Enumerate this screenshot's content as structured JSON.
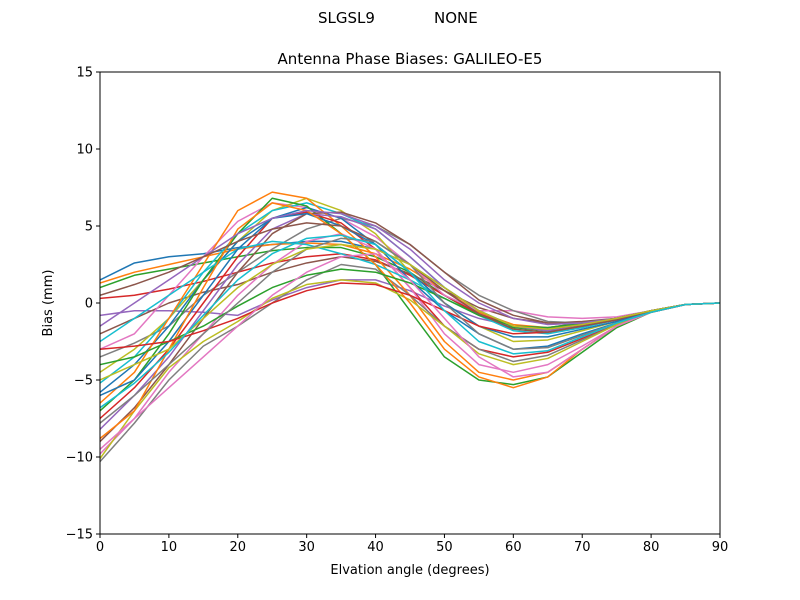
{
  "figure": {
    "suptitle_left": "SLGSL9",
    "suptitle_right": "NONE"
  },
  "chart_data": {
    "type": "line",
    "title": "Antenna Phase Biases: GALILEO-E5",
    "xlabel": "Elvation angle (degrees)",
    "ylabel": "Bias (mm)",
    "xlim": [
      0,
      90
    ],
    "ylim": [
      -15,
      15
    ],
    "xticks": [
      0,
      10,
      20,
      30,
      40,
      50,
      60,
      70,
      80,
      90
    ],
    "yticks": [
      -15,
      -10,
      -5,
      0,
      5,
      10,
      15
    ],
    "grid": false,
    "legend": "none",
    "x": [
      0,
      5,
      10,
      15,
      20,
      25,
      30,
      35,
      40,
      45,
      50,
      55,
      60,
      65,
      70,
      75,
      80,
      85,
      90
    ],
    "series": [
      {
        "values": [
          1.5,
          2.6,
          3.0,
          3.2,
          3.6,
          3.8,
          4.0,
          4.0,
          3.5,
          2.5,
          1.0,
          -0.5,
          -1.5,
          -1.7,
          -1.3,
          -1.0,
          -0.5,
          -0.1,
          0.0
        ]
      },
      {
        "values": [
          1.3,
          2.0,
          2.5,
          3.0,
          3.5,
          3.8,
          3.9,
          3.8,
          3.2,
          2.2,
          0.8,
          -0.6,
          -1.4,
          -1.6,
          -1.3,
          -1.0,
          -0.5,
          -0.1,
          0.0
        ]
      },
      {
        "values": [
          1.0,
          1.8,
          2.2,
          2.6,
          3.0,
          3.4,
          3.6,
          3.6,
          3.0,
          2.0,
          0.5,
          -0.8,
          -1.6,
          -1.8,
          -1.4,
          -1.0,
          -0.5,
          -0.1,
          0.0
        ]
      },
      {
        "values": [
          0.3,
          0.5,
          0.9,
          1.4,
          2.0,
          2.6,
          3.0,
          3.2,
          2.8,
          1.8,
          0.5,
          -0.7,
          -1.5,
          -1.8,
          -1.4,
          -1.0,
          -0.5,
          -0.1,
          0.0
        ]
      },
      {
        "values": [
          -0.8,
          -0.5,
          -0.5,
          -0.6,
          -0.8,
          0.2,
          1.0,
          1.5,
          1.5,
          0.8,
          -0.2,
          -1.0,
          -1.5,
          -1.6,
          -1.3,
          -1.0,
          -0.5,
          -0.1,
          0.0
        ]
      },
      {
        "values": [
          -2.0,
          -1.0,
          0.0,
          0.7,
          1.2,
          2.0,
          2.6,
          3.0,
          2.7,
          1.9,
          0.8,
          -0.3,
          -1.0,
          -1.3,
          -1.2,
          -1.0,
          -0.5,
          -0.1,
          0.0
        ]
      },
      {
        "values": [
          -3.0,
          -2.0,
          0.5,
          3.0,
          5.3,
          6.5,
          6.2,
          5.5,
          4.3,
          2.5,
          0.5,
          -0.5,
          -0.5,
          -0.9,
          -1.0,
          -0.9,
          -0.5,
          -0.1,
          0.0
        ]
      },
      {
        "values": [
          -3.5,
          -2.6,
          -1.5,
          0.5,
          2.0,
          3.5,
          4.8,
          5.5,
          5.0,
          3.8,
          2.0,
          0.5,
          -0.5,
          -1.2,
          -1.3,
          -1.0,
          -0.5,
          -0.1,
          0.0
        ]
      },
      {
        "values": [
          -4.5,
          -3.0,
          -1.0,
          1.5,
          4.0,
          6.0,
          6.8,
          6.0,
          4.5,
          2.0,
          0.0,
          -1.5,
          -2.5,
          -2.4,
          -1.8,
          -1.2,
          -0.6,
          -0.1,
          0.0
        ]
      },
      {
        "values": [
          -5.2,
          -3.5,
          -1.0,
          2.0,
          4.5,
          6.0,
          6.5,
          5.8,
          4.8,
          3.0,
          1.0,
          -0.5,
          -1.5,
          -1.8,
          -1.5,
          -1.1,
          -0.5,
          -0.1,
          0.0
        ]
      },
      {
        "values": [
          -5.8,
          -4.0,
          -1.5,
          1.5,
          4.0,
          5.5,
          6.2,
          5.5,
          3.8,
          1.5,
          -0.5,
          -2.0,
          -3.0,
          -2.8,
          -2.0,
          -1.3,
          -0.6,
          -0.1,
          0.0
        ]
      },
      {
        "values": [
          -6.5,
          -4.5,
          -1.0,
          2.5,
          6.0,
          7.2,
          6.8,
          5.0,
          3.0,
          0.5,
          -2.5,
          -4.5,
          -5.0,
          -4.5,
          -3.0,
          -1.5,
          -0.6,
          -0.1,
          0.0
        ]
      },
      {
        "values": [
          -7.0,
          -5.0,
          -2.0,
          1.5,
          4.5,
          6.8,
          6.3,
          4.5,
          2.5,
          -0.5,
          -3.5,
          -5.0,
          -5.3,
          -4.8,
          -3.2,
          -1.6,
          -0.6,
          -0.1,
          0.0
        ]
      },
      {
        "values": [
          -7.5,
          -5.5,
          -3.0,
          0.0,
          3.0,
          5.5,
          5.9,
          5.2,
          3.5,
          1.0,
          -1.5,
          -3.0,
          -3.5,
          -3.2,
          -2.3,
          -1.4,
          -0.6,
          -0.1,
          0.0
        ]
      },
      {
        "values": [
          -8.2,
          -6.0,
          -3.5,
          -0.5,
          2.5,
          4.8,
          5.8,
          5.6,
          4.8,
          3.0,
          1.0,
          -0.5,
          -1.5,
          -1.8,
          -1.5,
          -1.1,
          -0.5,
          -0.1,
          0.0
        ]
      },
      {
        "values": [
          -9.0,
          -6.8,
          -4.0,
          -1.0,
          2.0,
          4.5,
          5.8,
          5.9,
          5.2,
          3.8,
          2.0,
          0.2,
          -0.8,
          -1.3,
          -1.3,
          -1.0,
          -0.5,
          -0.1,
          0.0
        ]
      },
      {
        "values": [
          -9.8,
          -7.5,
          -4.5,
          -2.0,
          0.5,
          2.5,
          4.0,
          4.5,
          3.5,
          1.0,
          -2.0,
          -4.0,
          -4.5,
          -4.0,
          -2.8,
          -1.5,
          -0.6,
          -0.1,
          0.0
        ]
      },
      {
        "values": [
          -10.3,
          -7.8,
          -5.0,
          -2.8,
          -1.5,
          0.0,
          1.5,
          2.5,
          2.2,
          0.5,
          -1.5,
          -3.0,
          -3.8,
          -3.4,
          -2.4,
          -1.4,
          -0.6,
          -0.1,
          0.0
        ]
      },
      {
        "values": [
          -10.1,
          -7.0,
          -4.2,
          -2.5,
          -1.2,
          0.3,
          1.2,
          1.5,
          1.3,
          0.2,
          -1.5,
          -3.3,
          -4.0,
          -3.6,
          -2.5,
          -1.4,
          -0.6,
          -0.1,
          0.0
        ]
      },
      {
        "values": [
          -2.5,
          -1.0,
          0.5,
          2.0,
          3.5,
          4.0,
          3.8,
          3.2,
          2.5,
          1.5,
          0.3,
          -0.8,
          -1.8,
          -2.0,
          -1.6,
          -1.1,
          -0.5,
          -0.1,
          0.0
        ]
      },
      {
        "values": [
          -6.0,
          -5.0,
          -2.5,
          0.5,
          3.5,
          5.5,
          5.8,
          5.0,
          3.8,
          2.0,
          0.0,
          -1.5,
          -2.2,
          -2.2,
          -1.7,
          -1.2,
          -0.5,
          -0.1,
          0.0
        ]
      },
      {
        "values": [
          -8.8,
          -7.0,
          -3.0,
          1.0,
          4.8,
          6.5,
          6.0,
          4.5,
          2.5,
          0.0,
          -3.0,
          -4.8,
          -5.5,
          -4.8,
          -3.0,
          -1.5,
          -0.6,
          -0.1,
          0.0
        ]
      },
      {
        "values": [
          -4.0,
          -3.5,
          -2.5,
          -1.5,
          -0.2,
          1.0,
          1.8,
          2.2,
          2.0,
          1.3,
          0.3,
          -0.8,
          -1.5,
          -1.6,
          -1.3,
          -1.0,
          -0.5,
          -0.1,
          0.0
        ]
      },
      {
        "values": [
          -3.0,
          -2.8,
          -2.5,
          -1.8,
          -1.0,
          0.0,
          0.8,
          1.3,
          1.2,
          0.5,
          -0.5,
          -1.5,
          -2.0,
          -1.9,
          -1.5,
          -1.1,
          -0.5,
          -0.1,
          0.0
        ]
      },
      {
        "values": [
          -1.5,
          0.0,
          1.5,
          3.0,
          4.5,
          5.5,
          6.0,
          5.8,
          5.0,
          3.5,
          1.5,
          0.0,
          -1.0,
          -1.4,
          -1.3,
          -1.0,
          -0.5,
          -0.1,
          0.0
        ]
      },
      {
        "values": [
          0.5,
          1.2,
          2.0,
          3.0,
          4.0,
          4.8,
          5.2,
          5.0,
          4.0,
          2.5,
          0.8,
          -0.7,
          -1.7,
          -1.9,
          -1.5,
          -1.1,
          -0.5,
          -0.1,
          0.0
        ]
      },
      {
        "values": [
          -9.5,
          -7.5,
          -5.5,
          -3.5,
          -1.5,
          0.5,
          2.0,
          3.0,
          3.2,
          1.5,
          -1.0,
          -3.5,
          -4.8,
          -4.5,
          -3.0,
          -1.5,
          -0.6,
          -0.1,
          0.0
        ]
      },
      {
        "values": [
          -7.8,
          -6.0,
          -4.0,
          -2.0,
          0.0,
          2.0,
          3.5,
          4.2,
          4.0,
          2.5,
          0.0,
          -2.0,
          -3.0,
          -2.9,
          -2.1,
          -1.3,
          -0.6,
          -0.1,
          0.0
        ]
      },
      {
        "values": [
          -5.0,
          -4.0,
          -3.0,
          -1.0,
          1.0,
          2.5,
          3.5,
          3.8,
          3.5,
          2.5,
          1.0,
          -0.5,
          -1.5,
          -1.7,
          -1.4,
          -1.0,
          -0.5,
          -0.1,
          0.0
        ]
      },
      {
        "values": [
          -6.8,
          -5.2,
          -3.2,
          -0.8,
          1.5,
          3.2,
          4.2,
          4.4,
          3.8,
          2.0,
          -0.5,
          -2.5,
          -3.3,
          -3.1,
          -2.2,
          -1.3,
          -0.6,
          -0.1,
          0.0
        ]
      }
    ]
  },
  "colors": [
    "#1f77b4",
    "#ff7f0e",
    "#2ca02c",
    "#d62728",
    "#9467bd",
    "#8c564b",
    "#e377c2",
    "#7f7f7f",
    "#bcbd22",
    "#17becf"
  ]
}
